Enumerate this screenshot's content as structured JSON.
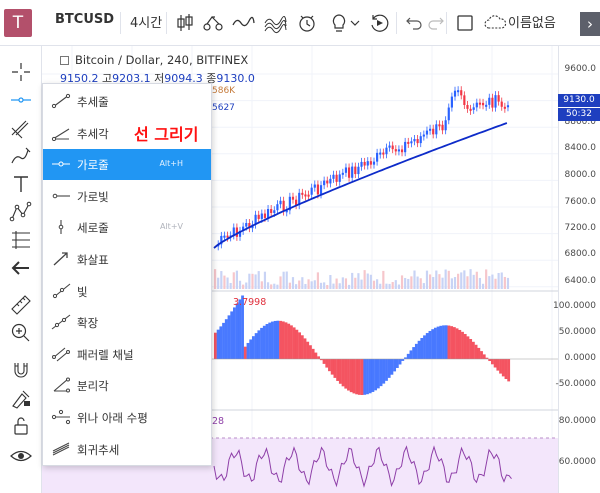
{
  "app": {
    "logo": "T"
  },
  "toolbar": {
    "symbol": "BTCUSD",
    "interval": "4시간",
    "layout_name": "이름없음",
    "arrow": "›"
  },
  "chart": {
    "legend_title": "Bitcoin / Dollar, 240, BITFINEX",
    "ohlc": {
      "o": "9150.2",
      "h_prefix": "고",
      "h": "9203.1",
      "l_prefix": "저",
      "l": "9094.3",
      "c_prefix": "종",
      "c": "9130.0"
    },
    "volume_fragment": "586K",
    "ma_fragment": "5627",
    "macd_value": "3.7998",
    "rsi_value_fragment": "28",
    "price_axis": [
      "9600.0",
      "8800.0",
      "8400.0",
      "8000.0",
      "7600.0",
      "7200.0",
      "6800.0",
      "6400.0"
    ],
    "macd_axis": [
      "100.0000",
      "50.0000",
      "0.0000",
      "-50.0000"
    ],
    "rsi_axis": [
      "80.0000",
      "60.0000"
    ],
    "current_price": "9130.0",
    "countdown": "50:32",
    "up_color": "#2962ff",
    "down_color": "#f23645",
    "ma_color": "#0d2bc9"
  },
  "menu": {
    "items": [
      {
        "label": "추세줄",
        "key": ""
      },
      {
        "label": "추세각",
        "key": ""
      },
      {
        "label": "가로줄",
        "key": "Alt+H"
      },
      {
        "label": "가로빛",
        "key": ""
      },
      {
        "label": "세로줄",
        "key": "Alt+V"
      },
      {
        "label": "화살표",
        "key": ""
      },
      {
        "label": "빛",
        "key": ""
      },
      {
        "label": "확장",
        "key": ""
      },
      {
        "label": "패러렐 채널",
        "key": ""
      },
      {
        "label": "분리각",
        "key": ""
      },
      {
        "label": "위나 아래 수평",
        "key": ""
      },
      {
        "label": "회귀추세",
        "key": ""
      }
    ],
    "active_index": 2
  },
  "annotation": "선 그리기"
}
